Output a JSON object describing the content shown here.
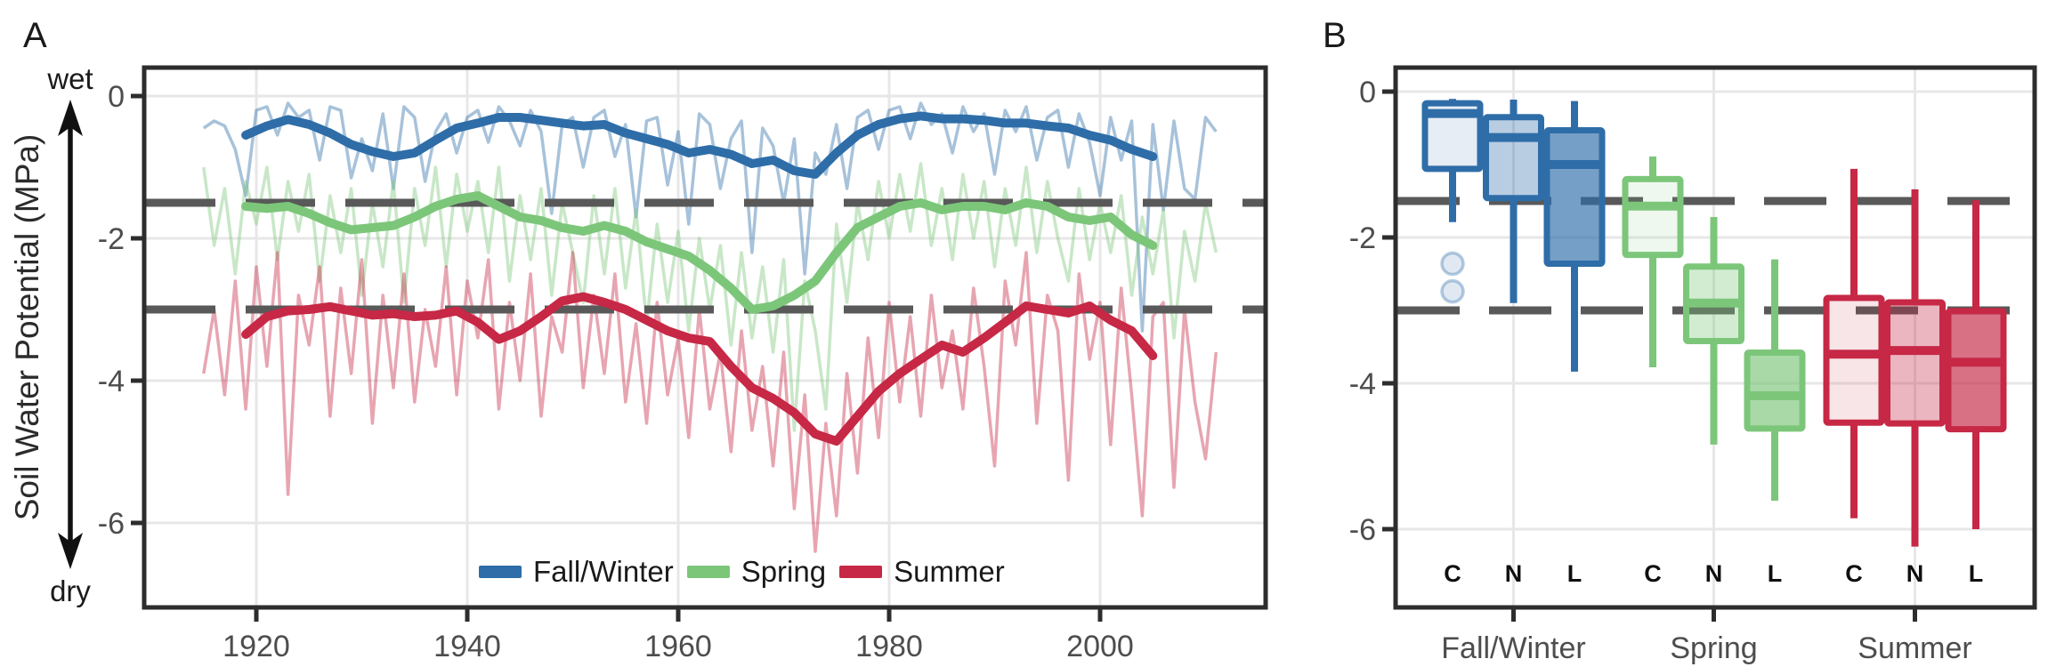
{
  "figure": {
    "panel_a": {
      "label": "A",
      "wet_label": "wet",
      "dry_label": "dry",
      "y_axis_title": "Soil Water Potential (MPa)"
    },
    "panel_b": {
      "label": "B"
    },
    "legend": {
      "items": [
        {
          "label": "Fall/Winter",
          "color": "#2E6DA8"
        },
        {
          "label": "Spring",
          "color": "#7CC67A"
        },
        {
          "label": "Summer",
          "color": "#C62845"
        }
      ]
    },
    "colors": {
      "grid": "#E7E7E7",
      "border": "#2D2D2D",
      "threshold": "#595959",
      "tick_text": "#4D4D4D"
    }
  },
  "chart_data": [
    {
      "type": "line",
      "panel": "A",
      "title": "",
      "xlabel": "",
      "ylabel": "Soil Water Potential (MPa)",
      "xlim": [
        1909,
        2016
      ],
      "ylim": [
        -7.2,
        0.45
      ],
      "grid": true,
      "x_ticks": [
        1920,
        1940,
        1960,
        1980,
        2000
      ],
      "x_tick_labels": [
        "1920",
        "1940",
        "1960",
        "1980",
        "2000"
      ],
      "y_ticks": [
        0,
        -2,
        -4,
        -6
      ],
      "y_tick_labels": [
        "0",
        "-2",
        "-4",
        "-6"
      ],
      "threshold_lines": [
        -1.5,
        -3
      ],
      "legend_position": "bottom-center-inside",
      "series": [
        {
          "name": "Fall/Winter",
          "color": "#2E6DA8",
          "smooth_start_year": 1919,
          "smooth_step_years": 2,
          "smooth": [
            -0.55,
            -0.42,
            -0.33,
            -0.4,
            -0.52,
            -0.68,
            -0.78,
            -0.85,
            -0.8,
            -0.62,
            -0.45,
            -0.38,
            -0.3,
            -0.3,
            -0.34,
            -0.38,
            -0.42,
            -0.4,
            -0.52,
            -0.6,
            -0.68,
            -0.8,
            -0.75,
            -0.82,
            -0.95,
            -0.9,
            -1.05,
            -1.1,
            -0.8,
            -0.55,
            -0.4,
            -0.32,
            -0.28,
            -0.32,
            -0.32,
            -0.34,
            -0.38,
            -0.38,
            -0.42,
            -0.45,
            -0.55,
            -0.62,
            -0.75,
            -0.85
          ],
          "annual_start_year": 1915,
          "annual": [
            -0.45,
            -0.35,
            -0.42,
            -0.75,
            -1.4,
            -0.2,
            -0.15,
            -0.55,
            -0.1,
            -0.3,
            -0.2,
            -0.9,
            -0.15,
            -0.2,
            -1.15,
            -0.6,
            -1.05,
            -0.25,
            -1.3,
            -0.15,
            -0.3,
            -1.2,
            -0.5,
            -0.25,
            -0.8,
            -0.3,
            -0.2,
            -0.65,
            -0.15,
            -0.35,
            -0.7,
            -0.2,
            -0.5,
            -1.65,
            -0.4,
            -0.3,
            -1.0,
            -0.3,
            -0.2,
            -0.85,
            -0.4,
            -1.7,
            -0.35,
            -0.3,
            -1.25,
            -0.5,
            -1.8,
            -0.25,
            -0.4,
            -1.3,
            -0.6,
            -0.35,
            -2.2,
            -0.45,
            -0.7,
            -1.5,
            -0.6,
            -2.5,
            -0.8,
            -1.1,
            -0.4,
            -1.3,
            -0.3,
            -0.2,
            -0.75,
            -0.2,
            -0.15,
            -0.6,
            -0.1,
            -0.4,
            -0.25,
            -0.8,
            -0.15,
            -0.5,
            -0.25,
            -1.1,
            -0.2,
            -0.5,
            -0.15,
            -0.9,
            -0.3,
            -0.2,
            -1.0,
            -0.25,
            -0.65,
            -1.4,
            -0.3,
            -0.9,
            -0.35,
            -3.3,
            -0.4,
            -1.6,
            -0.35,
            -1.3,
            -1.45,
            -0.3,
            -0.5
          ]
        },
        {
          "name": "Spring",
          "color": "#7CC67A",
          "smooth_start_year": 1919,
          "smooth_step_years": 2,
          "smooth": [
            -1.55,
            -1.58,
            -1.55,
            -1.65,
            -1.78,
            -1.88,
            -1.85,
            -1.82,
            -1.7,
            -1.55,
            -1.45,
            -1.4,
            -1.55,
            -1.7,
            -1.75,
            -1.85,
            -1.9,
            -1.82,
            -1.9,
            -2.05,
            -2.15,
            -2.25,
            -2.45,
            -2.7,
            -3.0,
            -2.95,
            -2.8,
            -2.6,
            -2.2,
            -1.85,
            -1.7,
            -1.55,
            -1.5,
            -1.6,
            -1.55,
            -1.55,
            -1.6,
            -1.5,
            -1.55,
            -1.7,
            -1.75,
            -1.7,
            -1.95,
            -2.1
          ],
          "annual_start_year": 1915,
          "annual": [
            -1.0,
            -2.1,
            -1.3,
            -2.5,
            -1.2,
            -1.8,
            -1.0,
            -2.3,
            -1.2,
            -1.9,
            -1.1,
            -2.6,
            -1.4,
            -2.2,
            -1.3,
            -2.8,
            -1.5,
            -2.4,
            -1.2,
            -2.9,
            -1.3,
            -2.1,
            -1.0,
            -2.4,
            -1.1,
            -1.9,
            -1.2,
            -2.2,
            -1.0,
            -2.6,
            -1.4,
            -2.3,
            -1.3,
            -2.8,
            -1.5,
            -2.2,
            -2.9,
            -1.4,
            -2.5,
            -1.3,
            -2.7,
            -1.6,
            -3.2,
            -1.8,
            -2.9,
            -1.9,
            -3.3,
            -2.0,
            -3.0,
            -2.1,
            -3.5,
            -2.2,
            -3.4,
            -2.4,
            -3.6,
            -2.3,
            -4.7,
            -2.6,
            -3.3,
            -4.4,
            -1.8,
            -2.9,
            -1.5,
            -2.3,
            -1.2,
            -2.0,
            -1.1,
            -1.9,
            -0.95,
            -2.1,
            -1.3,
            -2.3,
            -1.1,
            -2.0,
            -1.2,
            -2.4,
            -1.3,
            -2.1,
            -1.0,
            -2.2,
            -1.2,
            -2.0,
            -2.6,
            -1.3,
            -2.3,
            -1.5,
            -2.2,
            -1.4,
            -2.8,
            -1.7,
            -2.5,
            -1.6,
            -3.4,
            -1.9,
            -2.6,
            -1.5,
            -2.2
          ]
        },
        {
          "name": "Summer",
          "color": "#C62845",
          "smooth_start_year": 1919,
          "smooth_step_years": 2,
          "smooth": [
            -3.35,
            -3.1,
            -3.02,
            -3.0,
            -2.96,
            -3.02,
            -3.08,
            -3.06,
            -3.1,
            -3.08,
            -3.02,
            -3.18,
            -3.42,
            -3.3,
            -3.1,
            -2.88,
            -2.82,
            -2.9,
            -3.0,
            -3.15,
            -3.3,
            -3.4,
            -3.45,
            -3.8,
            -4.1,
            -4.25,
            -4.45,
            -4.75,
            -4.85,
            -4.5,
            -4.15,
            -3.9,
            -3.7,
            -3.5,
            -3.6,
            -3.4,
            -3.18,
            -2.95,
            -3.0,
            -3.05,
            -2.95,
            -3.15,
            -3.3,
            -3.65
          ],
          "annual_start_year": 1915,
          "annual": [
            -3.9,
            -3.0,
            -4.2,
            -2.6,
            -4.4,
            -2.4,
            -3.8,
            -2.2,
            -5.6,
            -2.8,
            -3.5,
            -2.4,
            -4.5,
            -2.7,
            -3.9,
            -2.3,
            -4.6,
            -2.8,
            -4.1,
            -2.5,
            -4.3,
            -3.0,
            -3.8,
            -2.4,
            -4.2,
            -2.6,
            -3.4,
            -2.3,
            -4.4,
            -2.9,
            -4.0,
            -2.5,
            -4.5,
            -3.1,
            -3.6,
            -2.2,
            -4.1,
            -2.8,
            -3.9,
            -2.5,
            -4.3,
            -3.2,
            -4.6,
            -2.9,
            -4.2,
            -3.4,
            -4.8,
            -3.0,
            -4.4,
            -3.6,
            -5.0,
            -3.3,
            -4.7,
            -3.8,
            -5.2,
            -3.6,
            -5.8,
            -4.2,
            -6.4,
            -4.6,
            -5.9,
            -3.9,
            -5.3,
            -3.4,
            -4.8,
            -2.9,
            -4.3,
            -3.1,
            -4.5,
            -2.8,
            -4.1,
            -3.3,
            -4.4,
            -2.7,
            -3.8,
            -5.2,
            -2.6,
            -3.5,
            -2.2,
            -4.6,
            -2.8,
            -3.3,
            -5.4,
            -2.5,
            -3.7,
            -2.9,
            -4.9,
            -2.7,
            -4.2,
            -5.9,
            -3.1,
            -2.9,
            -5.5,
            -3.0,
            -4.3,
            -5.1,
            -3.6
          ]
        }
      ]
    },
    {
      "type": "boxplot",
      "panel": "B",
      "title": "",
      "ylim": [
        -7.1,
        0.35
      ],
      "grid": true,
      "y_ticks": [
        0,
        -2,
        -4,
        -6
      ],
      "y_tick_labels": [
        "0",
        "-2",
        "-4",
        "-6"
      ],
      "threshold_lines": [
        -1.5,
        -3
      ],
      "treatment_labels": [
        "C",
        "N",
        "L"
      ],
      "groups": [
        {
          "label": "Fall/Winter",
          "color": "#2E6DA8",
          "boxes": [
            {
              "treatment": "C",
              "whisker_high": -0.1,
              "q3": -0.16,
              "median": -0.3,
              "q1": -1.06,
              "whisker_low": -1.79,
              "outliers": [
                -2.36,
                -2.74
              ],
              "fill_opacity": 0.12
            },
            {
              "treatment": "N",
              "whisker_high": -0.11,
              "q3": -0.35,
              "median": -0.63,
              "q1": -1.46,
              "whisker_low": -2.9,
              "outliers": [],
              "fill_opacity": 0.34
            },
            {
              "treatment": "L",
              "whisker_high": -0.13,
              "q3": -0.53,
              "median": -1.0,
              "q1": -2.36,
              "whisker_low": -3.84,
              "outliers": [],
              "fill_opacity": 0.66
            }
          ]
        },
        {
          "label": "Spring",
          "color": "#7CC67A",
          "boxes": [
            {
              "treatment": "C",
              "whisker_high": -0.89,
              "q3": -1.2,
              "median": -1.57,
              "q1": -2.24,
              "whisker_low": -3.78,
              "outliers": [],
              "fill_opacity": 0.12
            },
            {
              "treatment": "N",
              "whisker_high": -1.72,
              "q3": -2.4,
              "median": -2.9,
              "q1": -3.42,
              "whisker_low": -4.84,
              "outliers": [],
              "fill_opacity": 0.34
            },
            {
              "treatment": "L",
              "whisker_high": -2.3,
              "q3": -3.58,
              "median": -4.17,
              "q1": -4.62,
              "whisker_low": -5.61,
              "outliers": [],
              "fill_opacity": 0.66
            }
          ]
        },
        {
          "label": "Summer",
          "color": "#C62845",
          "boxes": [
            {
              "treatment": "C",
              "whisker_high": -1.06,
              "q3": -2.83,
              "median": -3.6,
              "q1": -4.54,
              "whisker_low": -5.85,
              "outliers": [],
              "fill_opacity": 0.12
            },
            {
              "treatment": "N",
              "whisker_high": -1.34,
              "q3": -2.89,
              "median": -3.55,
              "q1": -4.55,
              "whisker_low": -6.24,
              "outliers": [],
              "fill_opacity": 0.34
            },
            {
              "treatment": "L",
              "whisker_high": -1.49,
              "q3": -3.01,
              "median": -3.71,
              "q1": -4.63,
              "whisker_low": -6.0,
              "outliers": [],
              "fill_opacity": 0.66
            }
          ]
        }
      ]
    }
  ]
}
